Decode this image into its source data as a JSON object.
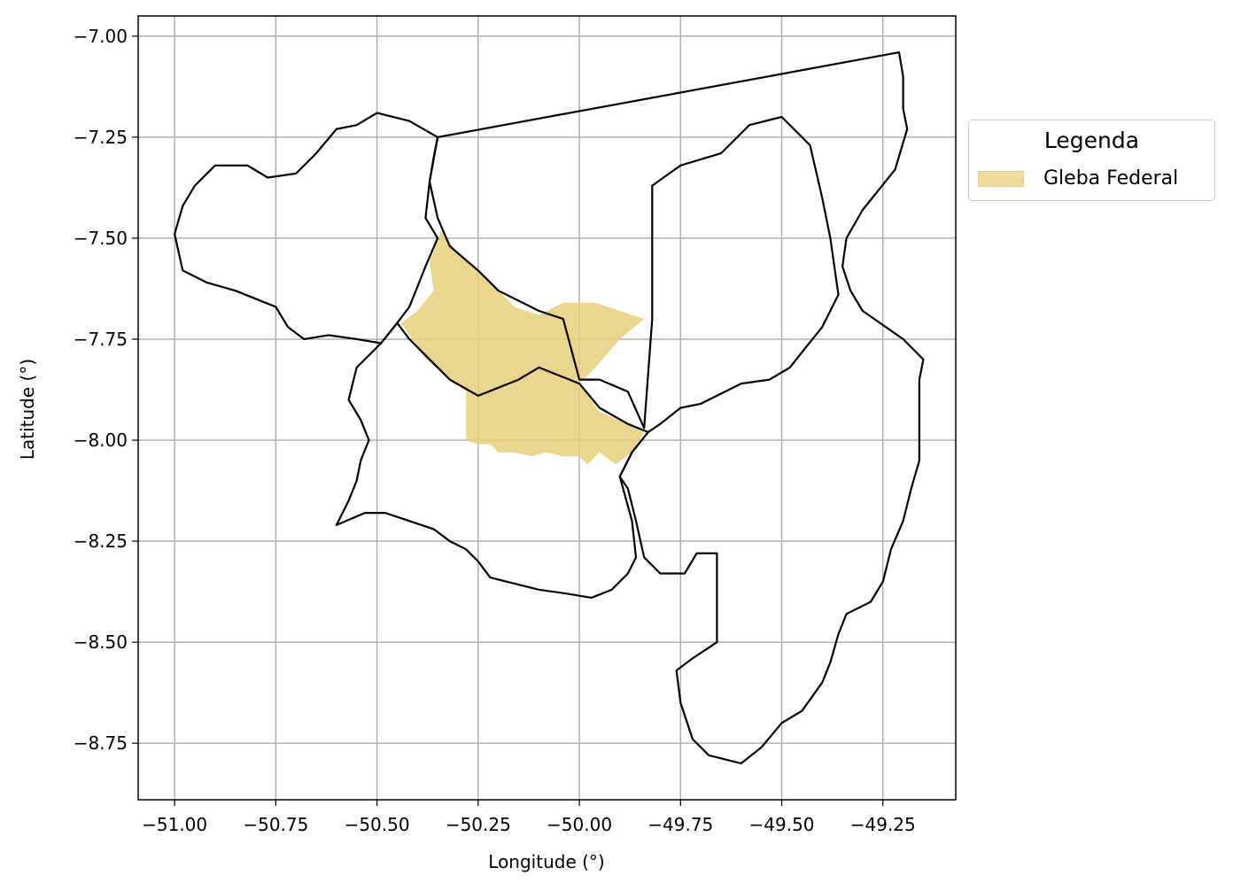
{
  "chart_data": {
    "type": "map",
    "title": "",
    "xlabel": "Longitude (°)",
    "ylabel": "Latitude (°)",
    "xlim": [
      -51.09,
      -49.07
    ],
    "ylim": [
      -8.89,
      -6.95
    ],
    "xticks": [
      -51.0,
      -50.75,
      -50.5,
      -50.25,
      -50.0,
      -49.75,
      -49.5,
      -49.25
    ],
    "xtick_labels": [
      "−51.00",
      "−50.75",
      "−50.50",
      "−50.25",
      "−50.00",
      "−49.75",
      "−49.50",
      "−49.25"
    ],
    "yticks": [
      -7.0,
      -7.25,
      -7.5,
      -7.75,
      -8.0,
      -8.25,
      -8.5,
      -8.75
    ],
    "ytick_labels": [
      "−7.00",
      "−7.25",
      "−7.50",
      "−7.75",
      "−8.00",
      "−8.25",
      "−8.50",
      "−8.75"
    ],
    "grid": true,
    "legend": {
      "title": "Legenda",
      "placement": "outside-right",
      "entries": [
        {
          "label": "Gleba Federal",
          "color": "#f0dd9e"
        }
      ]
    },
    "boundary_color": "#000000",
    "fill_color": "#e8cf7a",
    "boundaries": [
      {
        "coords": [
          [
            -50.35,
            -7.25
          ],
          [
            -50.42,
            -7.21
          ],
          [
            -50.5,
            -7.19
          ],
          [
            -50.55,
            -7.22
          ],
          [
            -50.6,
            -7.23
          ],
          [
            -50.65,
            -7.29
          ],
          [
            -50.7,
            -7.34
          ],
          [
            -50.77,
            -7.35
          ],
          [
            -50.82,
            -7.32
          ],
          [
            -50.9,
            -7.32
          ],
          [
            -50.95,
            -7.37
          ],
          [
            -50.98,
            -7.42
          ],
          [
            -51.0,
            -7.49
          ],
          [
            -50.98,
            -7.58
          ],
          [
            -50.92,
            -7.61
          ],
          [
            -50.85,
            -7.63
          ],
          [
            -50.8,
            -7.65
          ],
          [
            -50.75,
            -7.67
          ],
          [
            -50.72,
            -7.72
          ],
          [
            -50.68,
            -7.75
          ],
          [
            -50.62,
            -7.74
          ],
          [
            -50.55,
            -7.75
          ],
          [
            -50.49,
            -7.76
          ],
          [
            -50.45,
            -7.71
          ],
          [
            -50.42,
            -7.67
          ],
          [
            -50.4,
            -7.62
          ],
          [
            -50.38,
            -7.57
          ],
          [
            -50.35,
            -7.5
          ],
          [
            -50.38,
            -7.45
          ],
          [
            -50.37,
            -7.36
          ],
          [
            -50.36,
            -7.3
          ],
          [
            -50.35,
            -7.25
          ]
        ]
      },
      {
        "coords": [
          [
            -50.35,
            -7.25
          ],
          [
            -49.21,
            -7.04
          ],
          [
            -49.2,
            -7.1
          ],
          [
            -49.2,
            -7.18
          ],
          [
            -49.19,
            -7.23
          ],
          [
            -49.22,
            -7.33
          ],
          [
            -49.3,
            -7.43
          ],
          [
            -49.34,
            -7.5
          ],
          [
            -49.35,
            -7.57
          ],
          [
            -49.33,
            -7.63
          ],
          [
            -49.3,
            -7.68
          ],
          [
            -49.2,
            -7.75
          ],
          [
            -49.15,
            -7.8
          ],
          [
            -49.16,
            -7.85
          ],
          [
            -49.16,
            -7.95
          ],
          [
            -49.16,
            -8.05
          ],
          [
            -49.18,
            -8.12
          ],
          [
            -49.2,
            -8.2
          ],
          [
            -49.23,
            -8.27
          ],
          [
            -49.25,
            -8.35
          ],
          [
            -49.28,
            -8.4
          ],
          [
            -49.34,
            -8.43
          ],
          [
            -49.36,
            -8.48
          ],
          [
            -49.38,
            -8.55
          ],
          [
            -49.4,
            -8.6
          ],
          [
            -49.45,
            -8.67
          ],
          [
            -49.5,
            -8.7
          ],
          [
            -49.55,
            -8.76
          ],
          [
            -49.6,
            -8.8
          ],
          [
            -49.68,
            -8.78
          ],
          [
            -49.72,
            -8.74
          ],
          [
            -49.75,
            -8.65
          ],
          [
            -49.76,
            -8.57
          ],
          [
            -49.72,
            -8.54
          ],
          [
            -49.66,
            -8.5
          ],
          [
            -49.66,
            -8.28
          ],
          [
            -49.71,
            -8.28
          ],
          [
            -49.74,
            -8.33
          ],
          [
            -49.8,
            -8.33
          ],
          [
            -49.84,
            -8.29
          ],
          [
            -49.86,
            -8.2
          ],
          [
            -49.88,
            -8.12
          ],
          [
            -49.9,
            -8.09
          ],
          [
            -49.87,
            -8.03
          ],
          [
            -49.83,
            -7.98
          ],
          [
            -49.8,
            -7.96
          ],
          [
            -49.75,
            -7.92
          ],
          [
            -49.7,
            -7.91
          ],
          [
            -49.6,
            -7.86
          ],
          [
            -49.53,
            -7.85
          ],
          [
            -49.48,
            -7.82
          ],
          [
            -49.44,
            -7.77
          ],
          [
            -49.4,
            -7.72
          ],
          [
            -49.36,
            -7.64
          ],
          [
            -49.38,
            -7.5
          ],
          [
            -49.4,
            -7.4
          ],
          [
            -49.43,
            -7.27
          ],
          [
            -49.5,
            -7.2
          ],
          [
            -49.58,
            -7.22
          ],
          [
            -49.65,
            -7.29
          ],
          [
            -49.75,
            -7.32
          ],
          [
            -49.82,
            -7.37
          ],
          [
            -49.82,
            -7.7
          ],
          [
            -49.84,
            -7.97
          ],
          [
            -49.88,
            -7.88
          ],
          [
            -49.95,
            -7.85
          ],
          [
            -50.0,
            -7.85
          ],
          [
            -50.04,
            -7.7
          ],
          [
            -50.1,
            -7.68
          ],
          [
            -50.2,
            -7.63
          ],
          [
            -50.25,
            -7.58
          ],
          [
            -50.32,
            -7.52
          ],
          [
            -50.35,
            -7.45
          ],
          [
            -50.37,
            -7.36
          ],
          [
            -50.35,
            -7.25
          ]
        ]
      },
      {
        "coords": [
          [
            -50.49,
            -7.76
          ],
          [
            -50.55,
            -7.82
          ],
          [
            -50.57,
            -7.9
          ],
          [
            -50.54,
            -7.95
          ],
          [
            -50.52,
            -8.0
          ],
          [
            -50.54,
            -8.05
          ],
          [
            -50.55,
            -8.1
          ],
          [
            -50.57,
            -8.15
          ],
          [
            -50.6,
            -8.21
          ],
          [
            -50.53,
            -8.18
          ],
          [
            -50.48,
            -8.18
          ],
          [
            -50.42,
            -8.2
          ],
          [
            -50.36,
            -8.22
          ],
          [
            -50.32,
            -8.25
          ],
          [
            -50.28,
            -8.27
          ],
          [
            -50.25,
            -8.3
          ],
          [
            -50.22,
            -8.34
          ],
          [
            -50.18,
            -8.35
          ],
          [
            -50.1,
            -8.37
          ],
          [
            -50.03,
            -8.38
          ],
          [
            -49.97,
            -8.39
          ],
          [
            -49.92,
            -8.37
          ],
          [
            -49.88,
            -8.33
          ],
          [
            -49.86,
            -8.29
          ],
          [
            -49.87,
            -8.2
          ],
          [
            -49.9,
            -8.09
          ],
          [
            -49.87,
            -8.03
          ],
          [
            -49.83,
            -7.98
          ],
          [
            -49.88,
            -7.96
          ],
          [
            -49.95,
            -7.92
          ],
          [
            -50.0,
            -7.86
          ],
          [
            -50.1,
            -7.82
          ],
          [
            -50.15,
            -7.85
          ],
          [
            -50.25,
            -7.89
          ],
          [
            -50.32,
            -7.85
          ],
          [
            -50.37,
            -7.8
          ],
          [
            -50.42,
            -7.75
          ],
          [
            -50.45,
            -7.71
          ],
          [
            -50.49,
            -7.76
          ]
        ]
      }
    ],
    "gleba_polygon": [
      [
        -50.44,
        -7.71
      ],
      [
        -50.4,
        -7.68
      ],
      [
        -50.36,
        -7.63
      ],
      [
        -50.37,
        -7.56
      ],
      [
        -50.34,
        -7.48
      ],
      [
        -50.3,
        -7.54
      ],
      [
        -50.26,
        -7.57
      ],
      [
        -50.21,
        -7.62
      ],
      [
        -50.16,
        -7.67
      ],
      [
        -50.1,
        -7.69
      ],
      [
        -50.04,
        -7.66
      ],
      [
        -49.96,
        -7.66
      ],
      [
        -49.9,
        -7.68
      ],
      [
        -49.84,
        -7.7
      ],
      [
        -49.9,
        -7.75
      ],
      [
        -49.96,
        -7.82
      ],
      [
        -50.0,
        -7.86
      ],
      [
        -49.95,
        -7.93
      ],
      [
        -49.88,
        -7.96
      ],
      [
        -49.84,
        -7.98
      ],
      [
        -49.87,
        -8.03
      ],
      [
        -49.91,
        -8.06
      ],
      [
        -49.95,
        -8.03
      ],
      [
        -49.98,
        -8.06
      ],
      [
        -50.0,
        -8.04
      ],
      [
        -50.04,
        -8.04
      ],
      [
        -50.08,
        -8.03
      ],
      [
        -50.12,
        -8.04
      ],
      [
        -50.16,
        -8.03
      ],
      [
        -50.2,
        -8.03
      ],
      [
        -50.22,
        -8.01
      ],
      [
        -50.25,
        -8.01
      ],
      [
        -50.28,
        -8.0
      ],
      [
        -50.28,
        -7.92
      ],
      [
        -50.28,
        -7.88
      ],
      [
        -50.33,
        -7.84
      ],
      [
        -50.38,
        -7.8
      ],
      [
        -50.44,
        -7.71
      ]
    ]
  }
}
